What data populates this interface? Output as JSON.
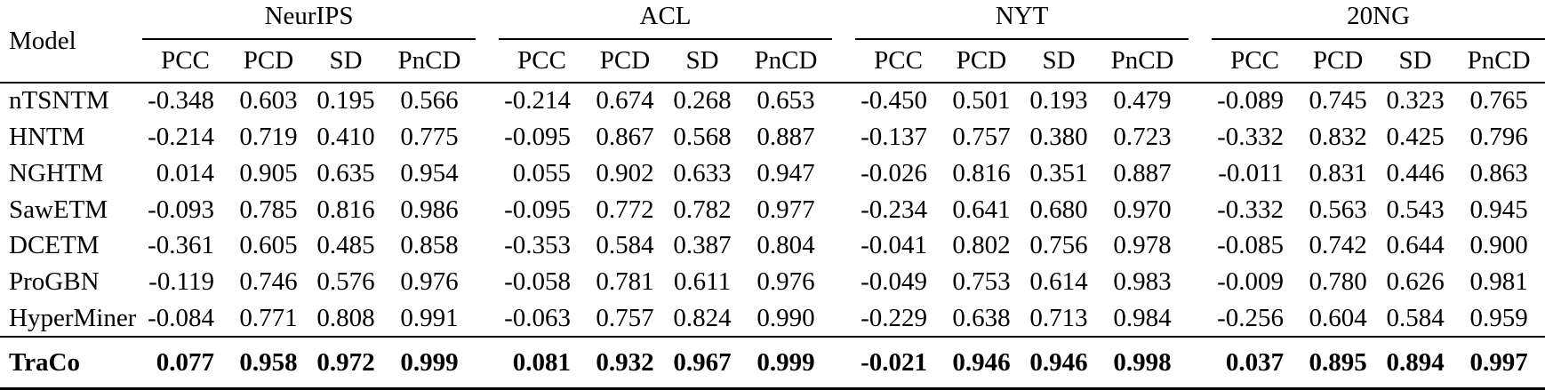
{
  "chart_data": {
    "type": "table",
    "row_header": "Model",
    "column_groups": [
      "NeurIPS",
      "ACL",
      "NYT",
      "20NG"
    ],
    "sub_columns": [
      "PCC",
      "PCD",
      "SD",
      "PnCD"
    ],
    "rows": [
      {
        "model": "nTSNTM",
        "bold": false,
        "values": [
          [
            "-0.348",
            "0.603",
            "0.195",
            "0.566"
          ],
          [
            "-0.214",
            "0.674",
            "0.268",
            "0.653"
          ],
          [
            "-0.450",
            "0.501",
            "0.193",
            "0.479"
          ],
          [
            "-0.089",
            "0.745",
            "0.323",
            "0.765"
          ]
        ]
      },
      {
        "model": "HNTM",
        "bold": false,
        "values": [
          [
            "-0.214",
            "0.719",
            "0.410",
            "0.775"
          ],
          [
            "-0.095",
            "0.867",
            "0.568",
            "0.887"
          ],
          [
            "-0.137",
            "0.757",
            "0.380",
            "0.723"
          ],
          [
            "-0.332",
            "0.832",
            "0.425",
            "0.796"
          ]
        ]
      },
      {
        "model": "NGHTM",
        "bold": false,
        "values": [
          [
            "0.014",
            "0.905",
            "0.635",
            "0.954"
          ],
          [
            "0.055",
            "0.902",
            "0.633",
            "0.947"
          ],
          [
            "-0.026",
            "0.816",
            "0.351",
            "0.887"
          ],
          [
            "-0.011",
            "0.831",
            "0.446",
            "0.863"
          ]
        ]
      },
      {
        "model": "SawETM",
        "bold": false,
        "values": [
          [
            "-0.093",
            "0.785",
            "0.816",
            "0.986"
          ],
          [
            "-0.095",
            "0.772",
            "0.782",
            "0.977"
          ],
          [
            "-0.234",
            "0.641",
            "0.680",
            "0.970"
          ],
          [
            "-0.332",
            "0.563",
            "0.543",
            "0.945"
          ]
        ]
      },
      {
        "model": "DCETM",
        "bold": false,
        "values": [
          [
            "-0.361",
            "0.605",
            "0.485",
            "0.858"
          ],
          [
            "-0.353",
            "0.584",
            "0.387",
            "0.804"
          ],
          [
            "-0.041",
            "0.802",
            "0.756",
            "0.978"
          ],
          [
            "-0.085",
            "0.742",
            "0.644",
            "0.900"
          ]
        ]
      },
      {
        "model": "ProGBN",
        "bold": false,
        "values": [
          [
            "-0.119",
            "0.746",
            "0.576",
            "0.976"
          ],
          [
            "-0.058",
            "0.781",
            "0.611",
            "0.976"
          ],
          [
            "-0.049",
            "0.753",
            "0.614",
            "0.983"
          ],
          [
            "-0.009",
            "0.780",
            "0.626",
            "0.981"
          ]
        ]
      },
      {
        "model": "HyperMiner",
        "bold": false,
        "values": [
          [
            "-0.084",
            "0.771",
            "0.808",
            "0.991"
          ],
          [
            "-0.063",
            "0.757",
            "0.824",
            "0.990"
          ],
          [
            "-0.229",
            "0.638",
            "0.713",
            "0.984"
          ],
          [
            "-0.256",
            "0.604",
            "0.584",
            "0.959"
          ]
        ]
      },
      {
        "model": "TraCo",
        "bold": true,
        "values": [
          [
            "0.077",
            "0.958",
            "0.972",
            "0.999"
          ],
          [
            "0.081",
            "0.932",
            "0.967",
            "0.999"
          ],
          [
            "-0.021",
            "0.946",
            "0.946",
            "0.998"
          ],
          [
            "0.037",
            "0.895",
            "0.894",
            "0.997"
          ]
        ]
      }
    ]
  },
  "colors": {
    "text": "#000000",
    "rule": "#000000",
    "background": "#ffffff"
  }
}
